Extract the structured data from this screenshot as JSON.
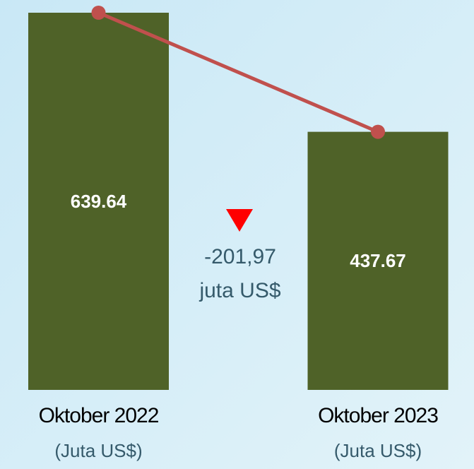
{
  "chart_data": {
    "type": "bar",
    "categories": [
      "Oktober 2022",
      "Oktober 2023"
    ],
    "category_units": [
      "(Juta US$)",
      "(Juta US$)"
    ],
    "values": [
      639.64,
      437.67
    ],
    "color": "#4f6228",
    "line_color": "#c0504d",
    "annotation": [
      "-201,97",
      "juta US$"
    ],
    "annotation_marker_color": "#ff0000"
  }
}
